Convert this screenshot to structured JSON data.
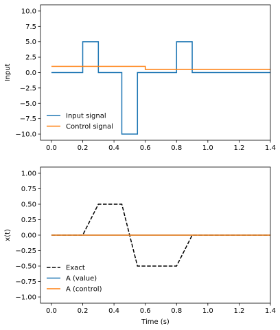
{
  "chart_data": [
    {
      "type": "line",
      "ylabel": "Input",
      "xlim": [
        -0.07,
        1.4
      ],
      "ylim": [
        -11,
        11
      ],
      "xticks": [
        0.0,
        0.2,
        0.4,
        0.6,
        0.8,
        1.0,
        1.2,
        1.4
      ],
      "xtick_labels": [
        "0.0",
        "0.2",
        "0.4",
        "0.6",
        "0.8",
        "1.0",
        "1.2",
        "1.4"
      ],
      "yticks": [
        10,
        7.5,
        5,
        2.5,
        0,
        -2.5,
        -5,
        -7.5,
        -10
      ],
      "ytick_labels": [
        "10.0",
        "7.5",
        "5.0",
        "2.5",
        "0.0",
        "−2.5",
        "−5.0",
        "−7.5",
        "−10.0"
      ],
      "legend": "lower-left",
      "series": [
        {
          "name": "Input signal",
          "color": "#1f77b4",
          "style": "solid",
          "x": [
            0,
            0.2,
            0.2,
            0.3,
            0.3,
            0.45,
            0.45,
            0.55,
            0.55,
            0.8,
            0.8,
            0.9,
            0.9,
            1.4
          ],
          "y": [
            0,
            0,
            5,
            5,
            0,
            0,
            -10,
            -10,
            0,
            0,
            5,
            5,
            0,
            0
          ]
        },
        {
          "name": "Control signal",
          "color": "#ff7f0e",
          "style": "solid",
          "x": [
            0,
            0.6,
            0.6,
            1.4
          ],
          "y": [
            1,
            1,
            0.5,
            0.5
          ]
        }
      ]
    },
    {
      "type": "line",
      "xlabel": "Time (s)",
      "ylabel": "x(t)",
      "xlim": [
        -0.07,
        1.4
      ],
      "ylim": [
        -1.1,
        1.1
      ],
      "xticks": [
        0.0,
        0.2,
        0.4,
        0.6,
        0.8,
        1.0,
        1.2,
        1.4
      ],
      "xtick_labels": [
        "0.0",
        "0.2",
        "0.4",
        "0.6",
        "0.8",
        "1.0",
        "1.2",
        "1.4"
      ],
      "yticks": [
        1,
        0.75,
        0.5,
        0.25,
        0,
        -0.25,
        -0.5,
        -0.75,
        -1
      ],
      "ytick_labels": [
        "1.00",
        "0.75",
        "0.50",
        "0.25",
        "0.00",
        "−0.25",
        "−0.50",
        "−0.75",
        "−1.00"
      ],
      "legend": "lower-left",
      "series": [
        {
          "name": "Exact",
          "color": "#000000",
          "style": "dashed",
          "x": [
            0,
            0.2,
            0.3,
            0.45,
            0.55,
            0.8,
            0.9,
            1.4
          ],
          "y": [
            0,
            0,
            0.5,
            0.5,
            -0.5,
            -0.5,
            0,
            0
          ]
        },
        {
          "name": "A (value)",
          "color": "#1f77b4",
          "style": "solid",
          "x": [
            0,
            1.4
          ],
          "y": [
            0,
            0
          ]
        },
        {
          "name": "A (control)",
          "color": "#ff7f0e",
          "style": "solid",
          "x": [
            0,
            1.4
          ],
          "y": [
            0,
            0
          ]
        }
      ]
    }
  ]
}
